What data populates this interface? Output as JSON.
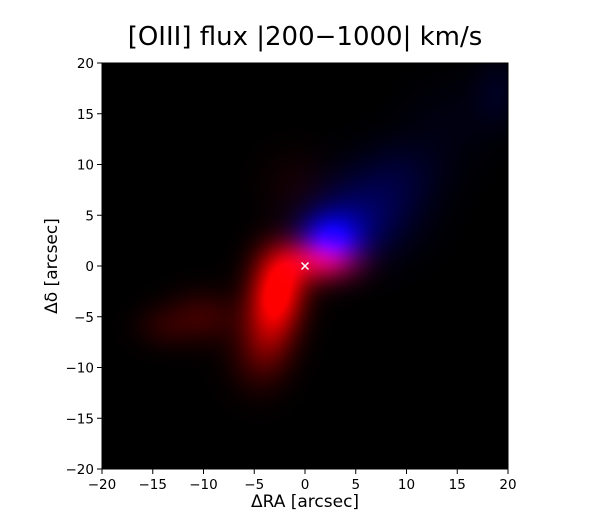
{
  "figure": {
    "title": "[OIII] flux |200−1000| km/s"
  },
  "chart_data": {
    "type": "heatmap",
    "title": "[OIII] flux |200−1000| km/s",
    "xlabel": "ΔRA [arcsec]",
    "ylabel": "Δδ [arcsec]",
    "xlim": [
      -20,
      20
    ],
    "ylim": [
      -20,
      20
    ],
    "x_ticks": [
      -20,
      -15,
      -10,
      -5,
      0,
      5,
      10,
      15,
      20
    ],
    "y_ticks": [
      -20,
      -15,
      -10,
      -5,
      0,
      5,
      10,
      15,
      20
    ],
    "x_tick_labels": [
      "−20",
      "−15",
      "−10",
      "−5",
      "0",
      "5",
      "10",
      "15",
      "20"
    ],
    "y_tick_labels": [
      "−20",
      "−15",
      "−10",
      "−5",
      "0",
      "5",
      "10",
      "15",
      "20"
    ],
    "background_color": "#000000",
    "grid": false,
    "channels": [
      {
        "color": "#ff0000",
        "components": [
          {
            "x": -2.5,
            "y": -2.0,
            "sx": 1.8,
            "sy": 2.6,
            "intensity": 0.85
          },
          {
            "x": -3.5,
            "y": -5.5,
            "sx": 1.8,
            "sy": 3.0,
            "intensity": 0.55
          },
          {
            "x": 0.5,
            "y": 0.5,
            "sx": 2.5,
            "sy": 1.6,
            "intensity": 0.55
          },
          {
            "x": 3.0,
            "y": 0.5,
            "sx": 2.2,
            "sy": 1.5,
            "intensity": 0.35
          },
          {
            "x": -10.0,
            "y": -5.0,
            "sx": 2.5,
            "sy": 1.8,
            "intensity": 0.22
          },
          {
            "x": -14.0,
            "y": -6.0,
            "sx": 2.0,
            "sy": 1.5,
            "intensity": 0.12
          },
          {
            "x": -5.0,
            "y": -9.0,
            "sx": 2.0,
            "sy": 2.5,
            "intensity": 0.15
          },
          {
            "x": -1.0,
            "y": 8.0,
            "sx": 2.5,
            "sy": 2.5,
            "intensity": 0.07
          }
        ]
      },
      {
        "color": "#0000ff",
        "components": [
          {
            "x": 2.5,
            "y": 2.5,
            "sx": 2.2,
            "sy": 1.9,
            "intensity": 0.9
          },
          {
            "x": 5.5,
            "y": 5.0,
            "sx": 3.5,
            "sy": 2.8,
            "intensity": 0.35
          },
          {
            "x": 9.5,
            "y": 9.0,
            "sx": 3.0,
            "sy": 2.5,
            "intensity": 0.15
          },
          {
            "x": 19.0,
            "y": 17.0,
            "sx": 1.8,
            "sy": 2.5,
            "intensity": 0.12
          },
          {
            "x": 14.0,
            "y": 14.0,
            "sx": 3.0,
            "sy": 3.0,
            "intensity": 0.06
          }
        ]
      }
    ],
    "markers": [
      {
        "x": 0,
        "y": 0,
        "symbol": "x",
        "color": "#ffffff"
      }
    ]
  }
}
